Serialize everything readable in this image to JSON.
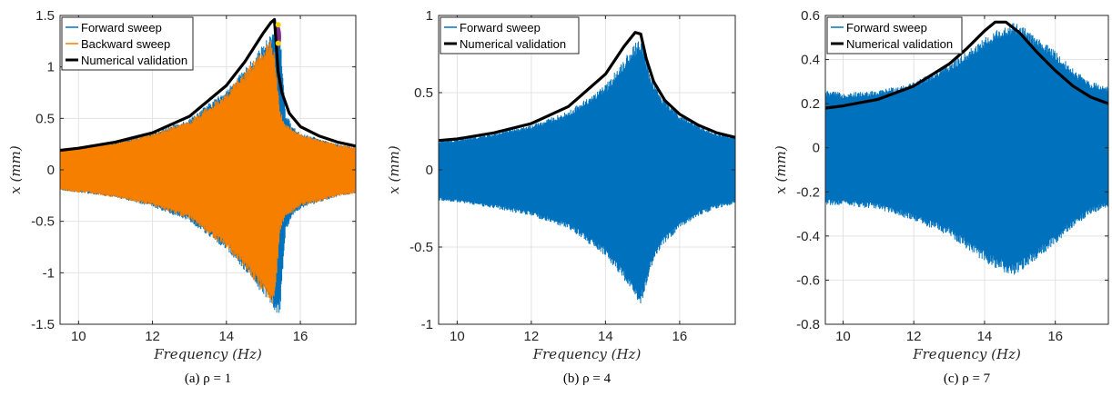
{
  "chart_data": [
    {
      "type": "line",
      "caption": "(a) ρ = 1",
      "xlabel": "Frequency (Hz)",
      "ylabel": "x (mm)",
      "xlim": [
        9.5,
        17.5
      ],
      "ylim": [
        -1.5,
        1.5
      ],
      "xticks": [
        10,
        12,
        14,
        16
      ],
      "yticks": [
        -1.5,
        -1,
        -0.5,
        0,
        0.5,
        1,
        1.5
      ],
      "xtick_labels": [
        "10",
        "12",
        "14",
        "16"
      ],
      "ytick_labels": [
        "-1.5",
        "-1",
        "-0.5",
        "0",
        "0.5",
        "1",
        "1.5"
      ],
      "grid": true,
      "legend": "top-left",
      "series": [
        {
          "name": "Forward sweep",
          "style": "envelope",
          "color": "#0072BD",
          "x": [
            9.5,
            10,
            11,
            12,
            13,
            14,
            14.5,
            15,
            15.2,
            15.35,
            15.45,
            15.6,
            15.8,
            16,
            17,
            17.5
          ],
          "upper": [
            0.2,
            0.22,
            0.27,
            0.36,
            0.5,
            0.78,
            0.98,
            1.22,
            1.32,
            1.38,
            1.34,
            0.55,
            0.42,
            0.36,
            0.25,
            0.22
          ],
          "lower": [
            -0.2,
            -0.22,
            -0.27,
            -0.36,
            -0.5,
            -0.78,
            -0.98,
            -1.22,
            -1.32,
            -1.42,
            -1.38,
            -0.6,
            -0.44,
            -0.38,
            -0.26,
            -0.23
          ]
        },
        {
          "name": "Backward sweep",
          "style": "envelope",
          "color": "#F77F00",
          "x": [
            9.5,
            10,
            11,
            12,
            13,
            14,
            14.5,
            15,
            15.2,
            15.3,
            15.45,
            15.6,
            15.8,
            16,
            17,
            17.5
          ],
          "upper": [
            0.2,
            0.22,
            0.27,
            0.35,
            0.48,
            0.76,
            0.96,
            1.18,
            1.28,
            1.15,
            0.58,
            0.45,
            0.4,
            0.35,
            0.25,
            0.22
          ],
          "lower": [
            -0.2,
            -0.22,
            -0.27,
            -0.35,
            -0.48,
            -0.76,
            -0.96,
            -1.2,
            -1.33,
            -1.3,
            -0.6,
            -0.46,
            -0.41,
            -0.36,
            -0.26,
            -0.23
          ]
        },
        {
          "name": "Numerical validation",
          "style": "line",
          "color": "#000000",
          "x": [
            9.5,
            10,
            11,
            12,
            13,
            14,
            14.5,
            15,
            15.2,
            15.3,
            15.35,
            15.4,
            15.5,
            15.7,
            16,
            16.5,
            17,
            17.5
          ],
          "y": [
            0.19,
            0.21,
            0.27,
            0.36,
            0.52,
            0.82,
            1.05,
            1.33,
            1.43,
            1.46,
            1.2,
            0.95,
            0.75,
            0.55,
            0.42,
            0.33,
            0.27,
            0.23
          ]
        }
      ],
      "annotations": {
        "markers": [
          {
            "x": 15.4,
            "y": 1.41,
            "color": "#EDD500"
          },
          {
            "x": 15.4,
            "y": 1.23,
            "color": "#EDD500"
          }
        ],
        "purple_region": {
          "x": [
            15.32,
            15.48
          ],
          "y": [
            1.18,
            1.4
          ],
          "color": "#7E2F8E"
        }
      }
    },
    {
      "type": "line",
      "caption": "(b) ρ = 4",
      "xlabel": "Frequency (Hz)",
      "ylabel": "x (mm)",
      "xlim": [
        9.5,
        17.5
      ],
      "ylim": [
        -1,
        1
      ],
      "xticks": [
        10,
        12,
        14,
        16
      ],
      "yticks": [
        -1,
        -0.5,
        0,
        0.5,
        1
      ],
      "xtick_labels": [
        "10",
        "12",
        "14",
        "16"
      ],
      "ytick_labels": [
        "-1",
        "-0.5",
        "0",
        "0.5",
        "1"
      ],
      "grid": true,
      "legend": "top-left",
      "series": [
        {
          "name": "Forward sweep",
          "style": "envelope",
          "color": "#0072BD",
          "x": [
            9.5,
            10,
            11,
            12,
            13,
            14,
            14.5,
            14.8,
            14.9,
            15,
            15.2,
            15.5,
            16,
            16.5,
            17,
            17.5
          ],
          "upper": [
            0.19,
            0.2,
            0.24,
            0.29,
            0.38,
            0.55,
            0.72,
            0.82,
            0.85,
            0.83,
            0.62,
            0.48,
            0.36,
            0.29,
            0.24,
            0.22
          ],
          "lower": [
            -0.2,
            -0.21,
            -0.25,
            -0.3,
            -0.38,
            -0.56,
            -0.72,
            -0.84,
            -0.88,
            -0.85,
            -0.65,
            -0.5,
            -0.38,
            -0.3,
            -0.25,
            -0.22
          ]
        },
        {
          "name": "Numerical validation",
          "style": "line",
          "color": "#000000",
          "x": [
            9.5,
            10,
            11,
            12,
            13,
            14,
            14.5,
            14.8,
            14.95,
            15.1,
            15.3,
            15.6,
            16,
            16.5,
            17,
            17.5
          ],
          "y": [
            0.19,
            0.2,
            0.24,
            0.3,
            0.41,
            0.62,
            0.8,
            0.89,
            0.88,
            0.72,
            0.57,
            0.45,
            0.36,
            0.29,
            0.24,
            0.21
          ]
        }
      ]
    },
    {
      "type": "line",
      "caption": "(c) ρ = 7",
      "xlabel": "Frequency (Hz)",
      "ylabel": "x (mm)",
      "xlim": [
        9.5,
        17.5
      ],
      "ylim": [
        -0.8,
        0.6
      ],
      "xticks": [
        10,
        12,
        14,
        16
      ],
      "yticks": [
        -0.8,
        -0.6,
        -0.4,
        -0.2,
        0,
        0.2,
        0.4,
        0.6
      ],
      "xtick_labels": [
        "10",
        "12",
        "14",
        "16"
      ],
      "ytick_labels": [
        "-0.8",
        "-0.6",
        "-0.4",
        "-0.2",
        "0",
        "0.2",
        "0.4",
        "0.6"
      ],
      "grid": true,
      "legend": "top-left",
      "series": [
        {
          "name": "Forward sweep",
          "style": "envelope",
          "color": "#0072BD",
          "x": [
            9.5,
            10,
            11,
            12,
            13,
            14,
            14.5,
            14.8,
            15,
            15.5,
            16,
            16.5,
            17,
            17.5
          ],
          "upper": [
            0.26,
            0.25,
            0.26,
            0.3,
            0.38,
            0.5,
            0.55,
            0.57,
            0.56,
            0.5,
            0.44,
            0.36,
            0.3,
            0.28
          ],
          "lower": [
            -0.26,
            -0.26,
            -0.28,
            -0.33,
            -0.4,
            -0.52,
            -0.56,
            -0.58,
            -0.57,
            -0.5,
            -0.44,
            -0.36,
            -0.3,
            -0.27
          ]
        },
        {
          "name": "Numerical validation",
          "style": "line",
          "color": "#000000",
          "x": [
            9.5,
            10,
            11,
            12,
            13,
            13.5,
            14,
            14.3,
            14.6,
            15,
            15.5,
            16,
            16.5,
            17,
            17.5
          ],
          "y": [
            0.18,
            0.19,
            0.22,
            0.28,
            0.38,
            0.45,
            0.53,
            0.57,
            0.57,
            0.52,
            0.43,
            0.35,
            0.28,
            0.23,
            0.2
          ]
        }
      ]
    }
  ]
}
